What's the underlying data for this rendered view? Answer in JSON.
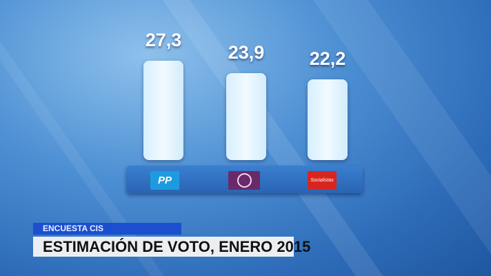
{
  "chart_data": {
    "type": "bar",
    "categories": [
      "PP",
      "Podemos",
      "PSOE"
    ],
    "values": [
      27.3,
      23.9,
      22.2
    ],
    "value_labels": [
      "27,3",
      "23,9",
      "22,2"
    ],
    "logos": [
      {
        "icon": "pp-logo-icon",
        "color": "#1d9be0",
        "text": "PP"
      },
      {
        "icon": "podemos-logo-icon",
        "color": "#6a2a6a"
      },
      {
        "icon": "psoe-logo-icon",
        "color": "#d8261f",
        "text": "Socialistas"
      }
    ],
    "ylim": [
      0,
      30
    ],
    "grid": false
  },
  "caption": {
    "kicker": "ENCUESTA CIS",
    "title": "ESTIMACIÓN DE VOTO, ENERO 2015"
  }
}
